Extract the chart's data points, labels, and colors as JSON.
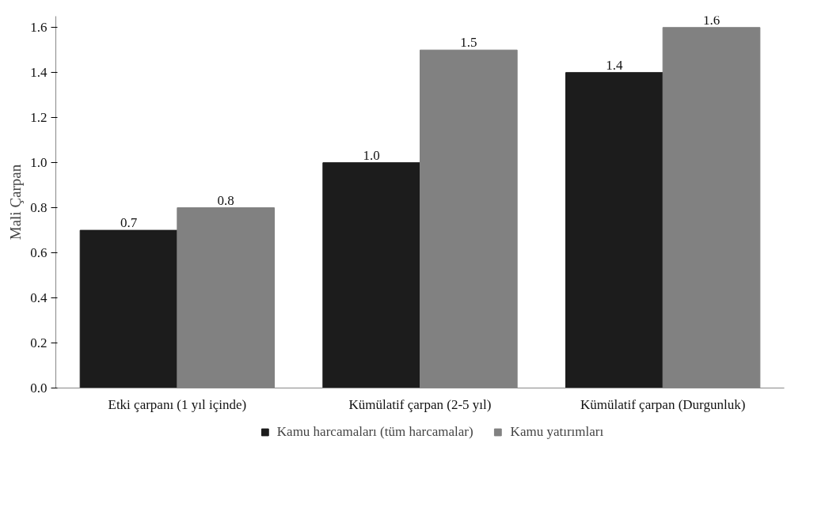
{
  "chart_data": {
    "type": "bar",
    "ylabel": "Mali Çarpan",
    "categories": [
      "Etki çarpanı (1 yıl içinde)",
      "Kümülatif çarpan (2-5 yıl)",
      "Kümülatif çarpan (Durgunluk)"
    ],
    "series": [
      {
        "name": "Kamu harcamaları (tüm harcamalar)",
        "color": "#1c1c1c",
        "values": [
          0.7,
          1.0,
          1.4
        ],
        "value_labels": [
          "0.7",
          "1.0",
          "1.4"
        ]
      },
      {
        "name": "Kamu yatırımları",
        "color": "#818181",
        "values": [
          0.8,
          1.5,
          1.6
        ],
        "value_labels": [
          "0.8",
          "1.5",
          "1.6"
        ]
      }
    ],
    "ylim": [
      0,
      1.65
    ],
    "yticks": [
      {
        "value": 0,
        "label": "0.0"
      },
      {
        "value": 0.2,
        "label": "0.2"
      },
      {
        "value": 0.4,
        "label": "0.4"
      },
      {
        "value": 0.6,
        "label": "0.6"
      },
      {
        "value": 0.8,
        "label": "0.8"
      },
      {
        "value": 1.0,
        "label": "1.0"
      },
      {
        "value": 1.2,
        "label": "1.2"
      },
      {
        "value": 1.4,
        "label": "1.4"
      },
      {
        "value": 1.6,
        "label": "1.6"
      }
    ],
    "grid": false,
    "legend": "bottom"
  }
}
